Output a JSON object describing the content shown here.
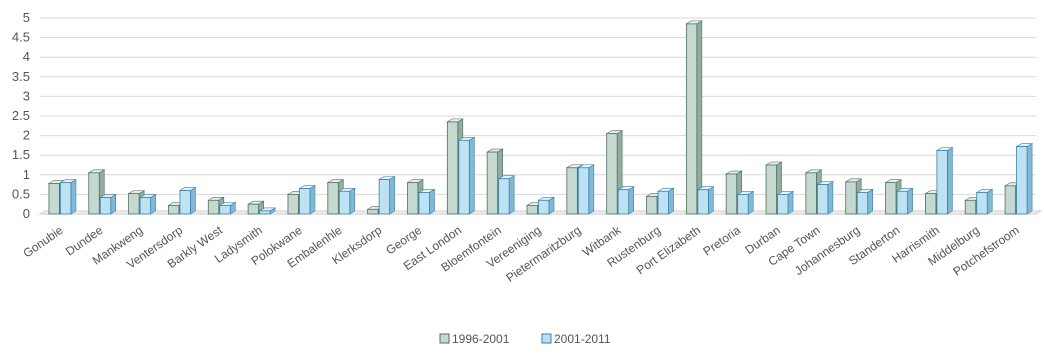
{
  "chart_data": {
    "type": "bar",
    "title": "",
    "xlabel": "",
    "ylabel": "",
    "ylim": [
      0,
      5
    ],
    "yticks": [
      "0",
      "0.5",
      "1",
      "1.5",
      "2",
      "2.5",
      "3",
      "3.5",
      "4",
      "4.5",
      "5"
    ],
    "grid": true,
    "legend_position": "bottom",
    "categories": [
      "Gonubie",
      "Dundee",
      "Mankweng",
      "Ventersdorp",
      "Barkly West",
      "Ladysmith",
      "Polokwane",
      "Embalenhle",
      "Klerksdorp",
      "George",
      "East London",
      "Bloemfontein",
      "Vereeniging",
      "Pietermaritzburg",
      "Witbank",
      "Rustenburg",
      "Port Elizabeth",
      "Pretoria",
      "Durban",
      "Cape Town",
      "Johannesburg",
      "Standerton",
      "Harrismith",
      "Middelburg",
      "Potchefstroom"
    ],
    "series": [
      {
        "name": "1996-2001",
        "color": "#c5d8cf",
        "values": [
          0.78,
          1.05,
          0.52,
          0.22,
          0.35,
          0.25,
          0.5,
          0.8,
          0.12,
          0.8,
          2.35,
          1.58,
          0.22,
          1.18,
          2.05,
          0.45,
          4.85,
          1.02,
          1.25,
          1.05,
          0.82,
          0.8,
          0.52,
          0.35,
          0.72
        ]
      },
      {
        "name": "2001-2011",
        "color": "#b9dff0",
        "values": [
          0.8,
          0.42,
          0.42,
          0.6,
          0.22,
          0.08,
          0.65,
          0.58,
          0.88,
          0.55,
          1.88,
          0.9,
          0.35,
          1.18,
          0.62,
          0.58,
          0.62,
          0.5,
          0.5,
          0.75,
          0.55,
          0.58,
          1.62,
          0.55,
          1.72
        ]
      }
    ]
  }
}
